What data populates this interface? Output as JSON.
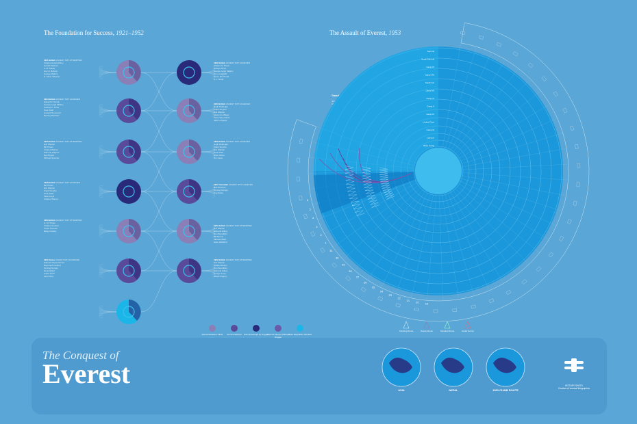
{
  "left": {
    "title": "The Foundation for Success,",
    "title_years": "1921–1952",
    "expeditions": [
      {
        "name": "1921 British",
        "suffix": "ASCENT NOT ATTEMPTED",
        "members": "Charles Howard-Bury\nHarold Raeburn\nA. M. Kellas\nGuy H. Bullock\nGeorge Mallory\nE. Oliver Wheeler"
      },
      {
        "name": "1922 British",
        "suffix": "ASCENT NOT ACHIEVED",
        "members": "Charles G. Bruce\nGeorge Finch\nGeorge Leigh Mallory\nTom Longstaff\nHenry Morshead\nE. L. Strutt"
      },
      {
        "name": "1924 British",
        "suffix": "ASCENT NOT ACHIEVED",
        "members": "Edward F. Norton\nGeorge Leigh Mallory\nAndrew C. Irvine\nNoel Odell\nHoward Somervell\nBentley Beetham"
      },
      {
        "name": "1933 British",
        "suffix": "ASCENT NOT ACHIEVED",
        "members": "Hugh Ruttledge\nFrank Smythe\nEric Shipton\nLawrence Wager\nPercy Wyn-Harris\nJack Longland"
      },
      {
        "name": "1935 British",
        "suffix": "ASCENT NOT ATTEMPTED",
        "members": "Eric Shipton\nBill Tilman\nCharles Warren\nEdmund Wigram\nDan Bryant\nMichael Spender"
      },
      {
        "name": "1936 British",
        "suffix": "ASCENT NOT ACHIEVED",
        "members": "Hugh Ruttledge\nFrank Smythe\nEric Shipton\nNoel Odell\nPeter Oliver\nJim Gavin"
      },
      {
        "name": "1938 British",
        "suffix": "ASCENT NOT ACHIEVED",
        "members": "Bill Tilman\nEric Shipton\nFrank Smythe\nNoel Odell\nPeter Lloyd\nCharles Warren"
      },
      {
        "name": "1947 Canadian",
        "suffix": "ASCENT NOT ACHIEVED",
        "members": "Earl Denman\nTenzing Norgay\nAng Dawa"
      },
      {
        "name": "1950 British",
        "suffix": "ASCENT NOT ATTEMPTED",
        "members": "H. W. Tilman\nCharles Houston\nOscar Houston\nBetsy Cowles"
      },
      {
        "name": "1951 British",
        "suffix": "ASCENT NOT ATTEMPTED",
        "members": "Eric Shipton\nEdmund Hillary\nTom Bourdillon\nBill Murray\nMichael Ward\nEarle Riddiford"
      },
      {
        "name": "1952 Swiss",
        "suffix": "ASCENT NOT ACHIEVED",
        "members": "Edouard Wyss-Dunant\nRaymond Lambert\nTenzing Norgay\nRené Dittert\nAndré Roch\nLéon Flory"
      },
      {
        "name": "1952 British",
        "suffix": "ASCENT NOT ATTEMPTED",
        "members": "Eric Shipton\nCharles Evans\nTom Bourdillon\nEdmund Hillary\nGeorge Lowe\nAlfred Gregory"
      }
    ],
    "legend": [
      "Reconnaissance Climb",
      "Summit Attempt",
      "Summit Attempt by Oxygen",
      "Summit Attempt Without Oxygen",
      "Base Expedition Climbed"
    ]
  },
  "right": {
    "title": "The Assault of Everest,",
    "title_years": "1953",
    "team_label": "Team Members",
    "team": "John Hunt\nCharles Evans\nTom Bourdillon\nTenzing Norgay\nEdmund Hillary\nWilfrid Noyce\nGeorge Band\nAlfred Gregory\nMichael Westmacott\nGeorge Lowe\nMichael Ward\nCharles Wylie\nGriffith Pugh\nTom Stobart\nJames Morris",
    "ring_labels": [
      "Summit",
      "South Summit",
      "Camp IX",
      "Camp VIII",
      "South Col",
      "Camp VII",
      "Camp VI",
      "Camp V",
      "Camp IV",
      "Lhotse Face",
      "Camp III",
      "Camp II",
      "Base Camp"
    ],
    "day_labels": [
      "19",
      "20",
      "21",
      "22",
      "23",
      "24",
      "25",
      "26",
      "27",
      "28",
      "29",
      "30",
      "31",
      "1",
      "2",
      "3",
      "4",
      "5",
      "6"
    ],
    "legend": [
      "Climbing Route",
      "Supply Route",
      "Supplied Route",
      "Aerial Survey"
    ]
  },
  "bottom": {
    "brand_small": "The Conquest of",
    "brand_big": "Everest",
    "maps": [
      "ASIA",
      "NEPAL",
      "1953 CLIMB ROUTE"
    ],
    "logo_sub": "HISTORY SHOTS\nCreators of unusual infographics"
  },
  "colors": {
    "background": "#5aa6d6",
    "panel": "#4f9bd0",
    "circle_recon": "#8a7fb6",
    "circle_attempt": "#5a4a9a",
    "circle_oxygen": "#2a2a7a",
    "circle_success": "#1bb6e8",
    "radial": "#1aa0e0"
  }
}
